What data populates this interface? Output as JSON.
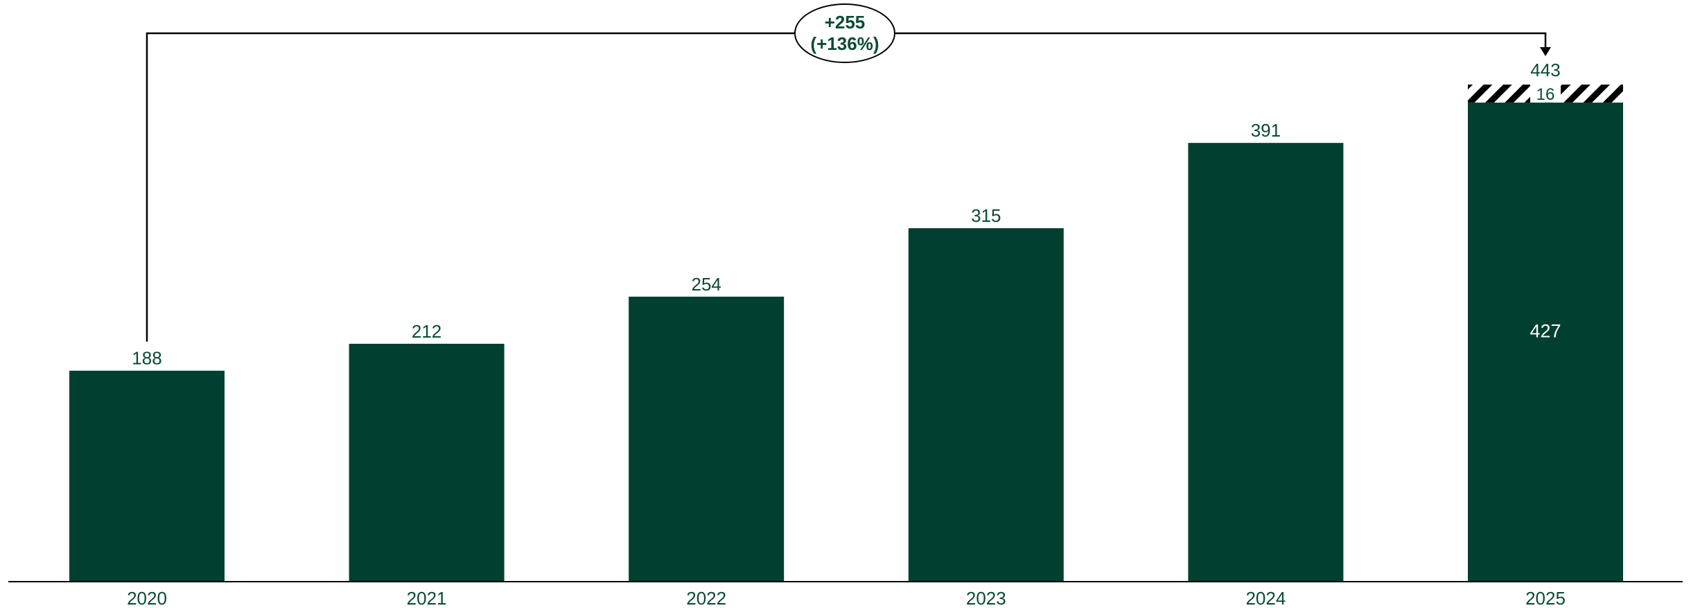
{
  "chart_data": {
    "type": "bar",
    "categories": [
      "2020",
      "2021",
      "2022",
      "2023",
      "2024",
      "2025"
    ],
    "values": [
      188,
      212,
      254,
      315,
      391,
      443
    ],
    "value_labels": [
      "188",
      "212",
      "254",
      "315",
      "391",
      "443"
    ],
    "stacked_last": {
      "category": "2025",
      "base_value": 427,
      "base_label": "427",
      "top_value": 16,
      "top_label": "16",
      "top_pattern": "hatched"
    },
    "callout": {
      "from": "2020",
      "to": "2025",
      "line1": "+255",
      "line2": "(+136%)"
    },
    "title": "",
    "xlabel": "",
    "ylabel": "",
    "ylim": [
      0,
      443
    ],
    "grid": false,
    "legend": "none",
    "colors": {
      "bar": "#014031",
      "text": "#0b4a36",
      "axis": "#000000",
      "hatch": "#000000"
    }
  }
}
